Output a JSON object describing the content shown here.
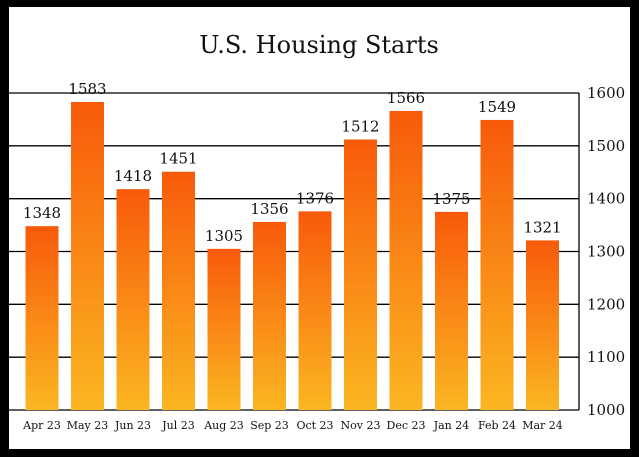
{
  "chart_data": {
    "type": "bar",
    "title": "U.S. Housing Starts",
    "xlabel": "",
    "ylabel": "",
    "categories": [
      "Apr 23",
      "May 23",
      "Jun 23",
      "Jul 23",
      "Aug 23",
      "Sep 23",
      "Oct 23",
      "Nov 23",
      "Dec 23",
      "Jan 24",
      "Feb 24",
      "Mar 24"
    ],
    "values": [
      1348,
      1583,
      1418,
      1451,
      1305,
      1356,
      1376,
      1512,
      1566,
      1375,
      1549,
      1321
    ],
    "data_labels": [
      "1348",
      "1583",
      "1418",
      "1451",
      "1305",
      "1356",
      "1376",
      "1512",
      "1566",
      "1375",
      "1549",
      "1321"
    ],
    "ylim": [
      1000,
      1600
    ],
    "yticks": [
      "1000",
      "1100",
      "1200",
      "1300",
      "1400",
      "1500",
      "1600"
    ],
    "y_axis_side": "right",
    "grid": true,
    "colors": {
      "bar_top": "#f85a0a",
      "bar_bottom": "#fbb622",
      "grid": "#000000"
    }
  }
}
